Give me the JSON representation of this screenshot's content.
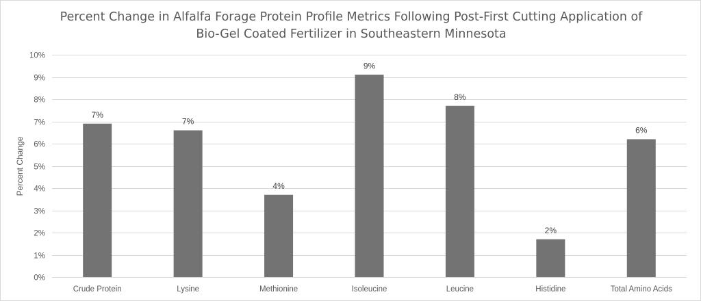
{
  "chart_data": {
    "type": "bar",
    "title_lines": [
      "Percent Change in Alfalfa Forage Protein Profile Metrics Following Post-First Cutting Application of",
      "Bio-Gel Coated Fertilizer in Southeastern Minnesota"
    ],
    "xlabel": "",
    "ylabel": "Percent Change",
    "categories": [
      "Crude Protein",
      "Lysine",
      "Methionine",
      "Isoleucine",
      "Leucine",
      "Histidine",
      "Total Amino Acids"
    ],
    "values": [
      6.9,
      6.6,
      3.7,
      9.1,
      7.7,
      1.7,
      6.2
    ],
    "data_labels": [
      "7%",
      "7%",
      "4%",
      "9%",
      "8%",
      "2%",
      "6%"
    ],
    "ylim": [
      0,
      10
    ],
    "yticks": [
      "0%",
      "1%",
      "2%",
      "3%",
      "4%",
      "5%",
      "6%",
      "7%",
      "8%",
      "9%",
      "10%"
    ],
    "grid": true,
    "legend": "none",
    "bar_color": "#737373",
    "grid_color": "#d9d9d9"
  }
}
